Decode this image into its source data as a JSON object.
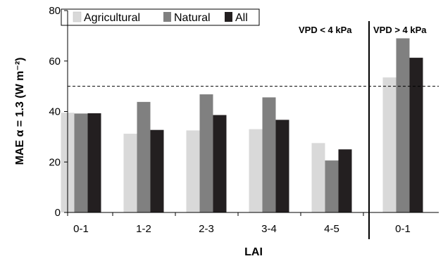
{
  "chart_data": {
    "type": "bar",
    "ylabel": "MAE α = 1.3 (W m⁻²)",
    "xlabel": "LAI",
    "ylim": [
      0,
      80
    ],
    "yticks": [
      "0",
      "20",
      "40",
      "60",
      "80"
    ],
    "categories": [
      "0-1",
      "1-2",
      "2-3",
      "3-4",
      "4-5",
      "0-1"
    ],
    "series": [
      {
        "name": "Agricultural",
        "color": "#d9d9d9",
        "values": [
          39.5,
          31.2,
          32.5,
          33.0,
          27.5,
          53.5
        ]
      },
      {
        "name": "Natural",
        "color": "#808080",
        "values": [
          39.2,
          43.8,
          46.8,
          45.6,
          20.6,
          69.0
        ]
      },
      {
        "name": "All",
        "color": "#231f20",
        "values": [
          39.3,
          32.7,
          38.6,
          36.7,
          25.0,
          61.3
        ]
      }
    ],
    "reference_line": {
      "y": 50,
      "style": "dashed"
    },
    "group_annotations": [
      "VPD < 4 kPa",
      "VPD > 4 kPa"
    ],
    "legend_position": "top-left",
    "grid": false
  }
}
